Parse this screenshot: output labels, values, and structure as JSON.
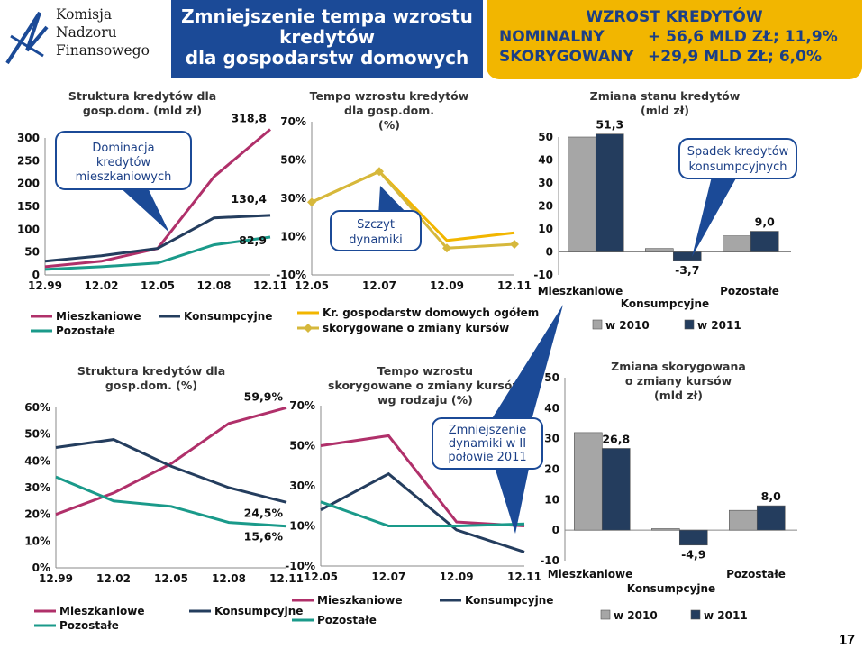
{
  "header": {
    "logo_lines": [
      "Komisja",
      "Nadzoru",
      "Finansowego"
    ],
    "title_lines": [
      "Zmniejszenie tempa wzrostu",
      "kredytów",
      "dla gospodarstw domowych"
    ],
    "growth_title": "WZROST KREDYTÓW",
    "growth_rows": [
      {
        "label": "NOMINALNY",
        "value": "+ 56,6 MLD ZŁ; 11,9%"
      },
      {
        "label": "SKORYGOWANY",
        "value": "+29,9 MLD ZŁ; 6,0%"
      }
    ]
  },
  "callouts": {
    "c1": [
      "Dominacja",
      "kredytów",
      "mieszkaniowych"
    ],
    "c2": [
      "Szczyt",
      "dynamiki"
    ],
    "c3": [
      "Spadek kredytów",
      "konsumpcyjnych"
    ],
    "c4": [
      "Zmniejszenie",
      "dynamiki w II",
      "połowie 2011"
    ]
  },
  "page_number": "17",
  "colors": {
    "mieszkaniowe": "#b0306a",
    "konsumpcyjne": "#243d5e",
    "pozostale": "#1a9a8a",
    "ogolem": "#f2b600",
    "skorygowane": "#d6b83c",
    "bar2010": "#a6a6a6",
    "bar2011": "#243d5e",
    "header_blue": "#1b4a97",
    "header_gold": "#f2b600"
  },
  "chart_data": [
    {
      "id": "c1",
      "type": "line",
      "title_lines": [
        "Struktura kredytów dla",
        "gosp.dom. (mld zł)"
      ],
      "yticks": [
        "0",
        "50",
        "100",
        "150",
        "200",
        "250",
        "300"
      ],
      "ylim": [
        0,
        300
      ],
      "xticks": [
        "12.99",
        "12.02",
        "12.05",
        "12.08",
        "12.11"
      ],
      "x": [
        0,
        1,
        2,
        3,
        4
      ],
      "series": [
        {
          "name": "Mieszkaniowe",
          "values": [
            18,
            30,
            58,
            215,
            318.8
          ]
        },
        {
          "name": "Konsumpcyjne",
          "values": [
            30,
            42,
            58,
            125,
            130.4
          ]
        },
        {
          "name": "Pozostałe",
          "values": [
            12,
            18,
            26,
            66,
            82.9
          ]
        }
      ],
      "end_labels": [
        "318,8",
        "130,4",
        "82,9"
      ],
      "legend_position": "bottom"
    },
    {
      "id": "c2",
      "type": "line",
      "title_lines": [
        "Tempo  wzrostu kredytów",
        "dla gosp.dom.",
        "(%)"
      ],
      "yticks": [
        "-10%",
        "10%",
        "30%",
        "50%",
        "70%"
      ],
      "ylim": [
        -10,
        70
      ],
      "xticks": [
        "12.05",
        "12.07",
        "12.09",
        "12.11"
      ],
      "x": [
        0,
        1,
        2,
        3
      ],
      "series": [
        {
          "name": "Kr. gospodarstw domowych ogółem",
          "values": [
            28,
            44,
            8,
            12
          ]
        },
        {
          "name": "skorygowane o zmiany kursów",
          "values": [
            28,
            44,
            4,
            6
          ]
        }
      ],
      "legend_position": "bottom"
    },
    {
      "id": "c3",
      "type": "bar",
      "title_lines": [
        "Zmiana  stanu kredytów",
        "(mld  zł)"
      ],
      "categories": [
        "Mieszkaniowe",
        "Konsumpcyjne",
        "Pozostałe"
      ],
      "series": [
        {
          "name": "w 2010",
          "values": [
            50,
            1.5,
            7
          ]
        },
        {
          "name": "w 2011",
          "values": [
            51.3,
            -3.7,
            9.0
          ]
        }
      ],
      "data_labels": [
        "51,3",
        "-3,7",
        "9,0"
      ],
      "yticks": [
        "-10",
        "0",
        "10",
        "20",
        "30",
        "40",
        "50"
      ],
      "ylim": [
        -10,
        50
      ],
      "legend_position": "bottom"
    },
    {
      "id": "c4",
      "type": "line",
      "title_lines": [
        "Struktura kredytów dla",
        "gosp.dom. (%)"
      ],
      "yticks": [
        "0%",
        "10%",
        "20%",
        "30%",
        "40%",
        "50%",
        "60%"
      ],
      "ylim": [
        0,
        60
      ],
      "xticks": [
        "12.99",
        "12.02",
        "12.05",
        "12.08",
        "12.11"
      ],
      "x": [
        0,
        1,
        2,
        3,
        4
      ],
      "series": [
        {
          "name": "Mieszkaniowe",
          "values": [
            20,
            28,
            39,
            54,
            59.9
          ]
        },
        {
          "name": "Konsumpcyjne",
          "values": [
            45,
            48,
            38,
            30,
            24.5
          ]
        },
        {
          "name": "Pozostałe",
          "values": [
            34,
            25,
            23,
            17,
            15.6
          ]
        }
      ],
      "end_labels": [
        "59,9%",
        "24,5%",
        "15,6%"
      ],
      "legend_position": "bottom"
    },
    {
      "id": "c5",
      "type": "line",
      "title_lines": [
        "Tempo  wzrostu",
        "skorygowane o zmiany kursów",
        "wg rodzaju (%)"
      ],
      "yticks": [
        "-10%",
        "10%",
        "30%",
        "50%",
        "70%"
      ],
      "ylim": [
        -10,
        70
      ],
      "xticks": [
        "12.05",
        "12.07",
        "12.09",
        "12.11"
      ],
      "x": [
        0,
        1,
        2,
        3
      ],
      "series": [
        {
          "name": "Mieszkaniowe",
          "values": [
            50,
            55,
            12,
            10
          ]
        },
        {
          "name": "Konsumpcyjne",
          "values": [
            18,
            36,
            8,
            -3
          ]
        },
        {
          "name": "Pozostałe",
          "values": [
            22,
            10,
            10,
            11
          ]
        }
      ],
      "legend_position": "bottom"
    },
    {
      "id": "c6",
      "type": "bar",
      "title_lines": [
        "Zmiana  skorygowana",
        "o zmiany kursów",
        "(mld  zł)"
      ],
      "categories": [
        "Mieszkaniowe",
        "Konsumpcyjne",
        "Pozostałe"
      ],
      "series": [
        {
          "name": "w 2010",
          "values": [
            32,
            0.5,
            6.5
          ]
        },
        {
          "name": "w 2011",
          "values": [
            26.8,
            -4.9,
            8.0
          ]
        }
      ],
      "data_labels": [
        "26,8",
        "-4,9",
        "8,0"
      ],
      "yticks": [
        "-10",
        "0",
        "10",
        "20",
        "30",
        "40",
        "50"
      ],
      "ylim": [
        -10,
        50
      ],
      "legend_position": "bottom"
    }
  ]
}
